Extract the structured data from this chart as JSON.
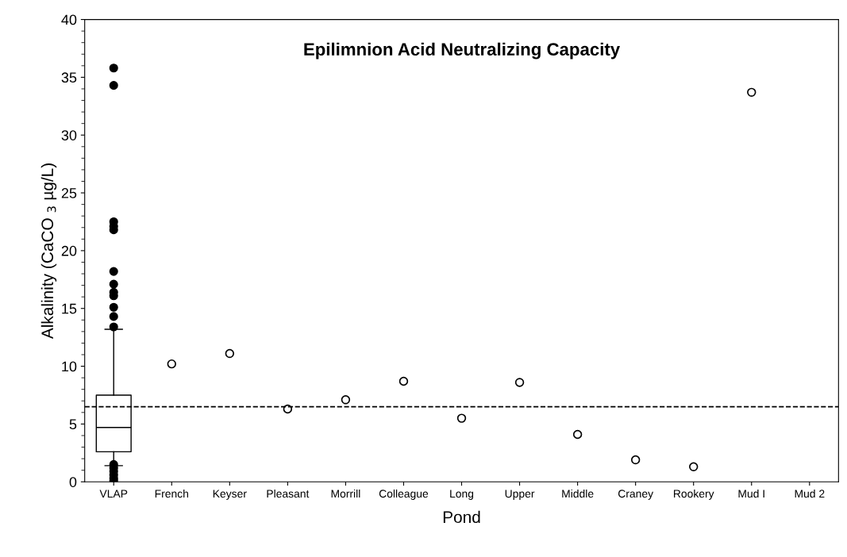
{
  "chart_data": {
    "type": "box",
    "title": "Epilimnion Acid Neutralizing Capacity",
    "xlabel": "Pond",
    "ylabel": "Alkalinity (CaCO $_{3}$ µg/L)",
    "categories": [
      "VLAP",
      "French",
      "Keyser",
      "Pleasant",
      "Morrill",
      "Colleague",
      "Long",
      "Upper",
      "Middle",
      "Craney",
      "Rookery",
      "Mud I",
      "Mud 2"
    ],
    "series": [
      {
        "color": "#000000",
        "boxes": [
          {
            "low": 1.4,
            "q1": 2.6,
            "median": 4.7,
            "q3": 7.5,
            "high": 13.2,
            "outliers": [
              35.8,
              34.3,
              22.5,
              22.1,
              21.8,
              18.2,
              17.1,
              16.4,
              16.1,
              15.1,
              14.3,
              13.4,
              1.5,
              1.2,
              0.9,
              0.6,
              0.3,
              0.1
            ]
          },
          null,
          null,
          null,
          null,
          null,
          null,
          null,
          null,
          null,
          null,
          null,
          null
        ]
      },
      {
        "type": "scatter",
        "color": "#000000",
        "marker": "circle",
        "values": [
          null,
          10.2,
          11.1,
          6.3,
          7.1,
          8.7,
          5.5,
          8.6,
          4.1,
          1.9,
          1.3,
          33.7,
          null
        ]
      }
    ],
    "ylim": [
      0,
      40
    ],
    "yticks": [
      0,
      5,
      10,
      15,
      20,
      25,
      30,
      35,
      40
    ],
    "ref_lines": [
      {
        "axis": "y",
        "value": 6.5,
        "color": "#000000",
        "line_style": "dashed"
      }
    ],
    "grid": false,
    "legend": false
  }
}
